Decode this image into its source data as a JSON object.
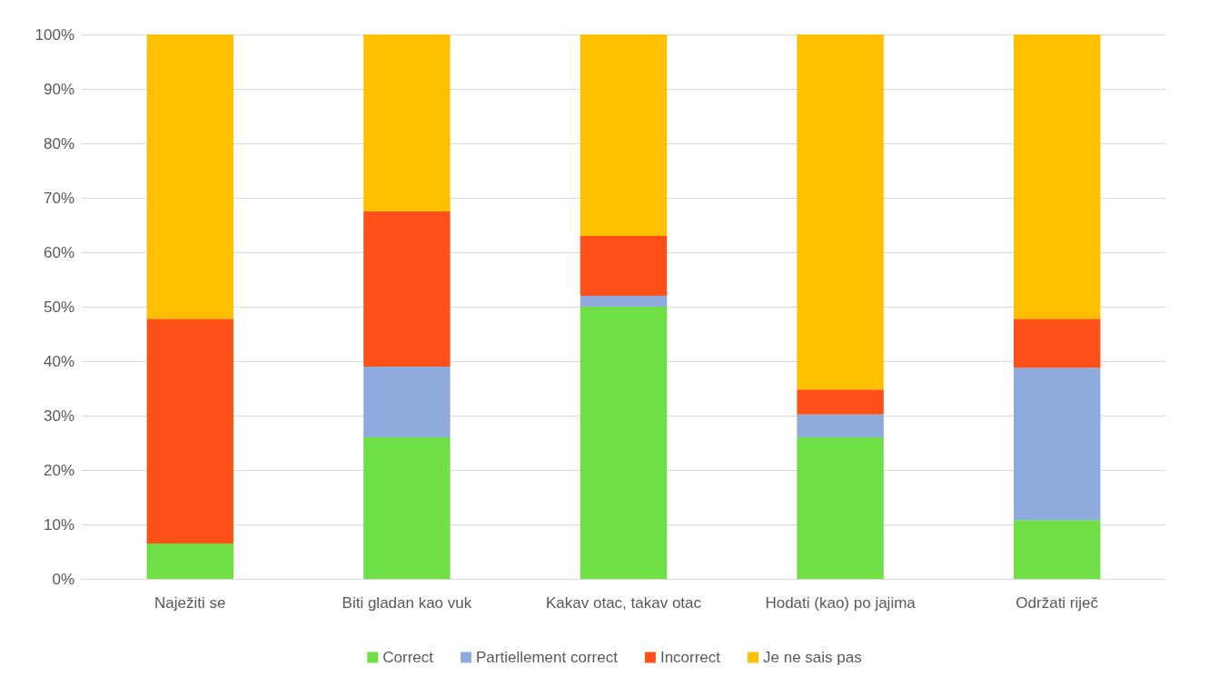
{
  "chart_data": {
    "type": "bar",
    "stacked": true,
    "categories": [
      "Naježiti se",
      "Biti gladan kao vuk",
      "Kakav otac, takav otac",
      "Hodati (kao) po jajima",
      "Održati riječ"
    ],
    "series": [
      {
        "name": "Correct",
        "color": "#6fdf46",
        "values": [
          6.5,
          26,
          50,
          26,
          10.8
        ]
      },
      {
        "name": "Partiellement correct",
        "color": "#8faadc",
        "values": [
          0,
          13,
          2,
          4.2,
          28
        ]
      },
      {
        "name": "Incorrect",
        "color": "#ff5019",
        "values": [
          41.3,
          28.5,
          11,
          4.6,
          9
        ]
      },
      {
        "name": "Je ne sais pas",
        "color": "#ffc000",
        "values": [
          52.2,
          32.5,
          37,
          65.2,
          52.2
        ]
      }
    ],
    "ylim": [
      0,
      100
    ],
    "yticks": [
      {
        "value": 0,
        "label": "0%"
      },
      {
        "value": 10,
        "label": "10%"
      },
      {
        "value": 20,
        "label": "20%"
      },
      {
        "value": 30,
        "label": "30%"
      },
      {
        "value": 40,
        "label": "40%"
      },
      {
        "value": 50,
        "label": "50%"
      },
      {
        "value": 60,
        "label": "60%"
      },
      {
        "value": 70,
        "label": "70%"
      },
      {
        "value": 80,
        "label": "80%"
      },
      {
        "value": 90,
        "label": "90%"
      },
      {
        "value": 100,
        "label": "100%"
      }
    ],
    "grid": "y",
    "legend": "bottom"
  }
}
